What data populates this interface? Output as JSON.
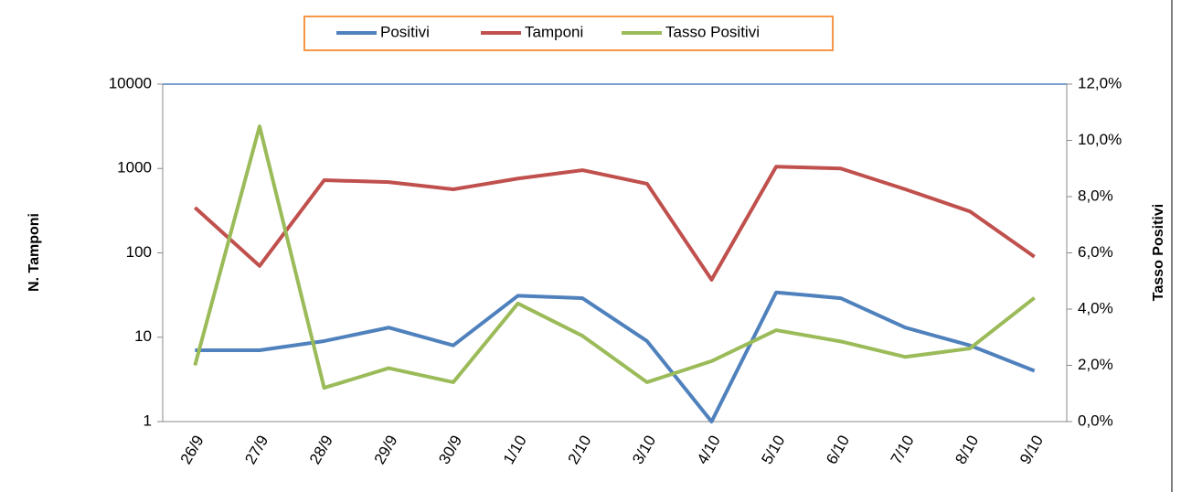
{
  "chart_data": {
    "type": "line",
    "categories": [
      "26/9",
      "27/9",
      "28/9",
      "29/9",
      "30/9",
      "1/10",
      "2/10",
      "3/10",
      "4/10",
      "5/10",
      "6/10",
      "7/10",
      "8/10",
      "9/10"
    ],
    "series": [
      {
        "name": "Positivi",
        "color": "#4f81bd",
        "values": [
          7,
          7,
          9,
          13,
          8,
          31,
          29,
          9,
          1,
          34,
          29,
          13,
          8,
          4
        ]
      },
      {
        "name": "Tamponi",
        "color": "#c0504d",
        "values": [
          344,
          70,
          727,
          690,
          567,
          760,
          955,
          660,
          48,
          1050,
          1000,
          567,
          310,
          90
        ]
      },
      {
        "name": "Tasso Positivi",
        "color": "#9bbb59",
        "axis": "y2",
        "values": [
          2.0,
          10.5,
          1.2,
          1.9,
          1.4,
          4.2,
          3.05,
          1.4,
          2.15,
          3.25,
          2.85,
          2.3,
          2.6,
          4.4
        ]
      }
    ],
    "ylabel": "N. Tamponi",
    "y2label": "Tasso Positivi",
    "ylim": [
      1,
      10000
    ],
    "yticks": [
      1,
      10,
      100,
      1000,
      10000
    ],
    "ylog": true,
    "y2lim": [
      0,
      12
    ],
    "y2ticks": [
      {
        "value": 0,
        "label": "0,0%"
      },
      {
        "value": 2,
        "label": "2,0%"
      },
      {
        "value": 4,
        "label": "4,0%"
      },
      {
        "value": 6,
        "label": "6,0%"
      },
      {
        "value": 8,
        "label": "8,0%"
      },
      {
        "value": 10,
        "label": "10,0%"
      },
      {
        "value": 12,
        "label": "12,0%"
      }
    ],
    "legend": "top",
    "grid": false
  }
}
